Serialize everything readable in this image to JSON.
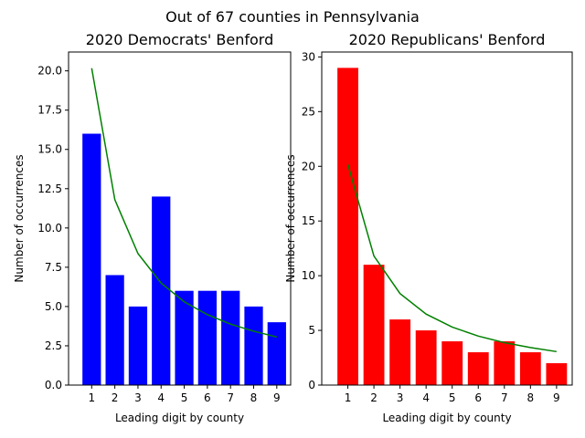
{
  "figure": {
    "suptitle": "Out of 67 counties in Pennsylvania"
  },
  "chart_data": [
    {
      "type": "bar",
      "title": "2020 Democrats' Benford",
      "xlabel": "Leading digit by county",
      "ylabel": "Number of occurrences",
      "categories": [
        1,
        2,
        3,
        4,
        5,
        6,
        7,
        8,
        9
      ],
      "values": [
        16,
        7,
        5,
        12,
        6,
        6,
        6,
        5,
        4
      ],
      "bar_color": "#0000ff",
      "benford_expected": [
        20.17,
        11.8,
        8.37,
        6.49,
        5.3,
        4.48,
        3.88,
        3.43,
        3.06
      ],
      "line_color": "#008000",
      "ylim": [
        0,
        21.2
      ],
      "yticks": [
        0.0,
        2.5,
        5.0,
        7.5,
        10.0,
        12.5,
        15.0,
        17.5,
        20.0
      ],
      "ytick_labels": [
        "0.0",
        "2.5",
        "5.0",
        "7.5",
        "10.0",
        "12.5",
        "15.0",
        "17.5",
        "20.0"
      ],
      "grid": false
    },
    {
      "type": "bar",
      "title": "2020 Republicans' Benford",
      "xlabel": "Leading digit by county",
      "ylabel": "Number of occurrences",
      "categories": [
        1,
        2,
        3,
        4,
        5,
        6,
        7,
        8,
        9
      ],
      "values": [
        29,
        11,
        6,
        5,
        4,
        3,
        4,
        3,
        2
      ],
      "bar_color": "#ff0000",
      "benford_expected": [
        20.17,
        11.8,
        8.37,
        6.49,
        5.3,
        4.48,
        3.88,
        3.43,
        3.06
      ],
      "line_color": "#008000",
      "ylim": [
        0,
        30.45
      ],
      "yticks": [
        0,
        5,
        10,
        15,
        20,
        25,
        30
      ],
      "ytick_labels": [
        "0",
        "5",
        "10",
        "15",
        "20",
        "25",
        "30"
      ],
      "grid": false
    }
  ]
}
